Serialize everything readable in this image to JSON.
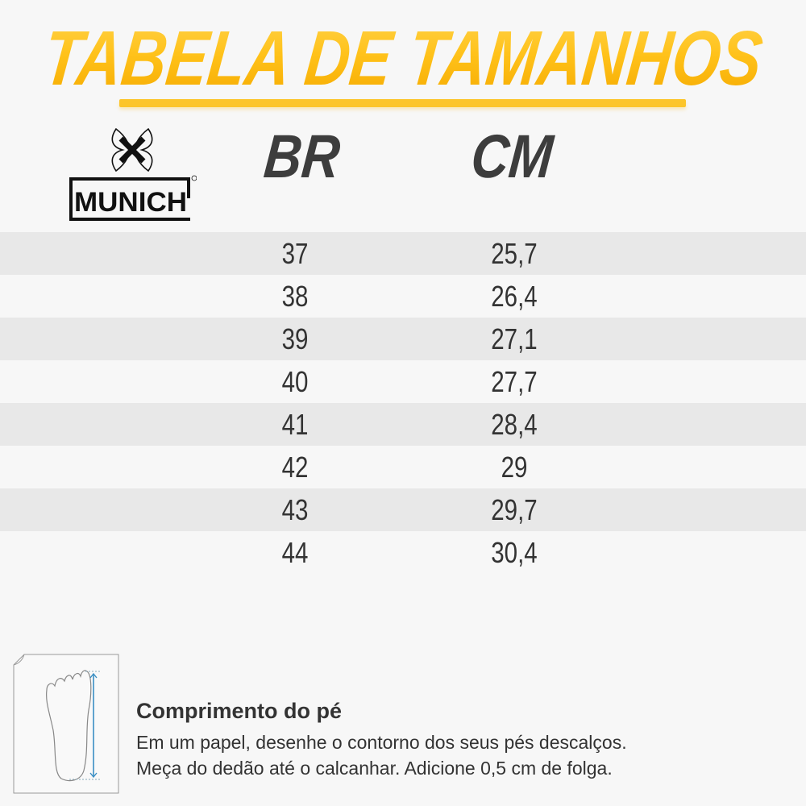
{
  "title": "TABELA DE TAMANHOS",
  "colors": {
    "title": "#fbb813",
    "accent_bar": "#fcc52a",
    "stripe": "#e8e8e8",
    "text": "#333333",
    "measure_arrow": "#3a8fc4"
  },
  "logo": {
    "brand": "MUNICH",
    "icon": "munich-x-logo"
  },
  "table": {
    "headers": [
      "BR",
      "CM"
    ],
    "rows": [
      [
        "37",
        "25,7"
      ],
      [
        "38",
        "26,4"
      ],
      [
        "39",
        "27,1"
      ],
      [
        "40",
        "27,7"
      ],
      [
        "41",
        "28,4"
      ],
      [
        "42",
        "29"
      ],
      [
        "43",
        "29,7"
      ],
      [
        "44",
        "30,4"
      ]
    ]
  },
  "instructions": {
    "icon": "foot-measure-icon",
    "title": "Comprimento do pé",
    "line1": "Em um papel, desenhe o contorno dos seus pés descalços.",
    "line2": "Meça do dedão até o calcanhar. Adicione 0,5 cm de folga."
  }
}
